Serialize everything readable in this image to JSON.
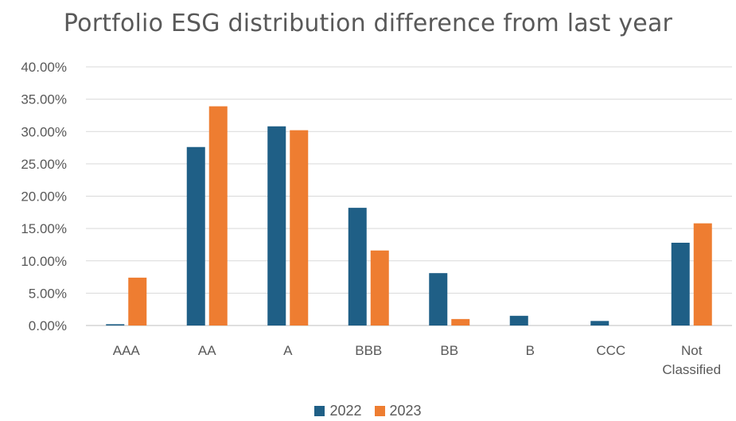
{
  "chart_data": {
    "type": "bar",
    "title": "Portfolio ESG distribution difference from last year",
    "categories": [
      "AAA",
      "AA",
      "A",
      "BBB",
      "BB",
      "B",
      "CCC",
      "Not Classified"
    ],
    "category_lines": [
      [
        "AAA"
      ],
      [
        "AA"
      ],
      [
        "A"
      ],
      [
        "BBB"
      ],
      [
        "BB"
      ],
      [
        "B"
      ],
      [
        "CCC"
      ],
      [
        "Not",
        "Classified"
      ]
    ],
    "series": [
      {
        "name": "2022",
        "color": "#1f5f86",
        "values": [
          0.2,
          27.6,
          30.8,
          18.2,
          8.1,
          1.5,
          0.7,
          12.8
        ]
      },
      {
        "name": "2023",
        "color": "#ee7d31",
        "values": [
          7.4,
          33.9,
          30.2,
          11.6,
          1.0,
          0.0,
          0.0,
          15.8
        ]
      }
    ],
    "ylim": [
      0,
      40
    ],
    "yticks": [
      "0.00%",
      "5.00%",
      "10.00%",
      "15.00%",
      "20.00%",
      "25.00%",
      "30.00%",
      "35.00%",
      "40.00%"
    ],
    "grid": true,
    "legend_position": "bottom"
  }
}
